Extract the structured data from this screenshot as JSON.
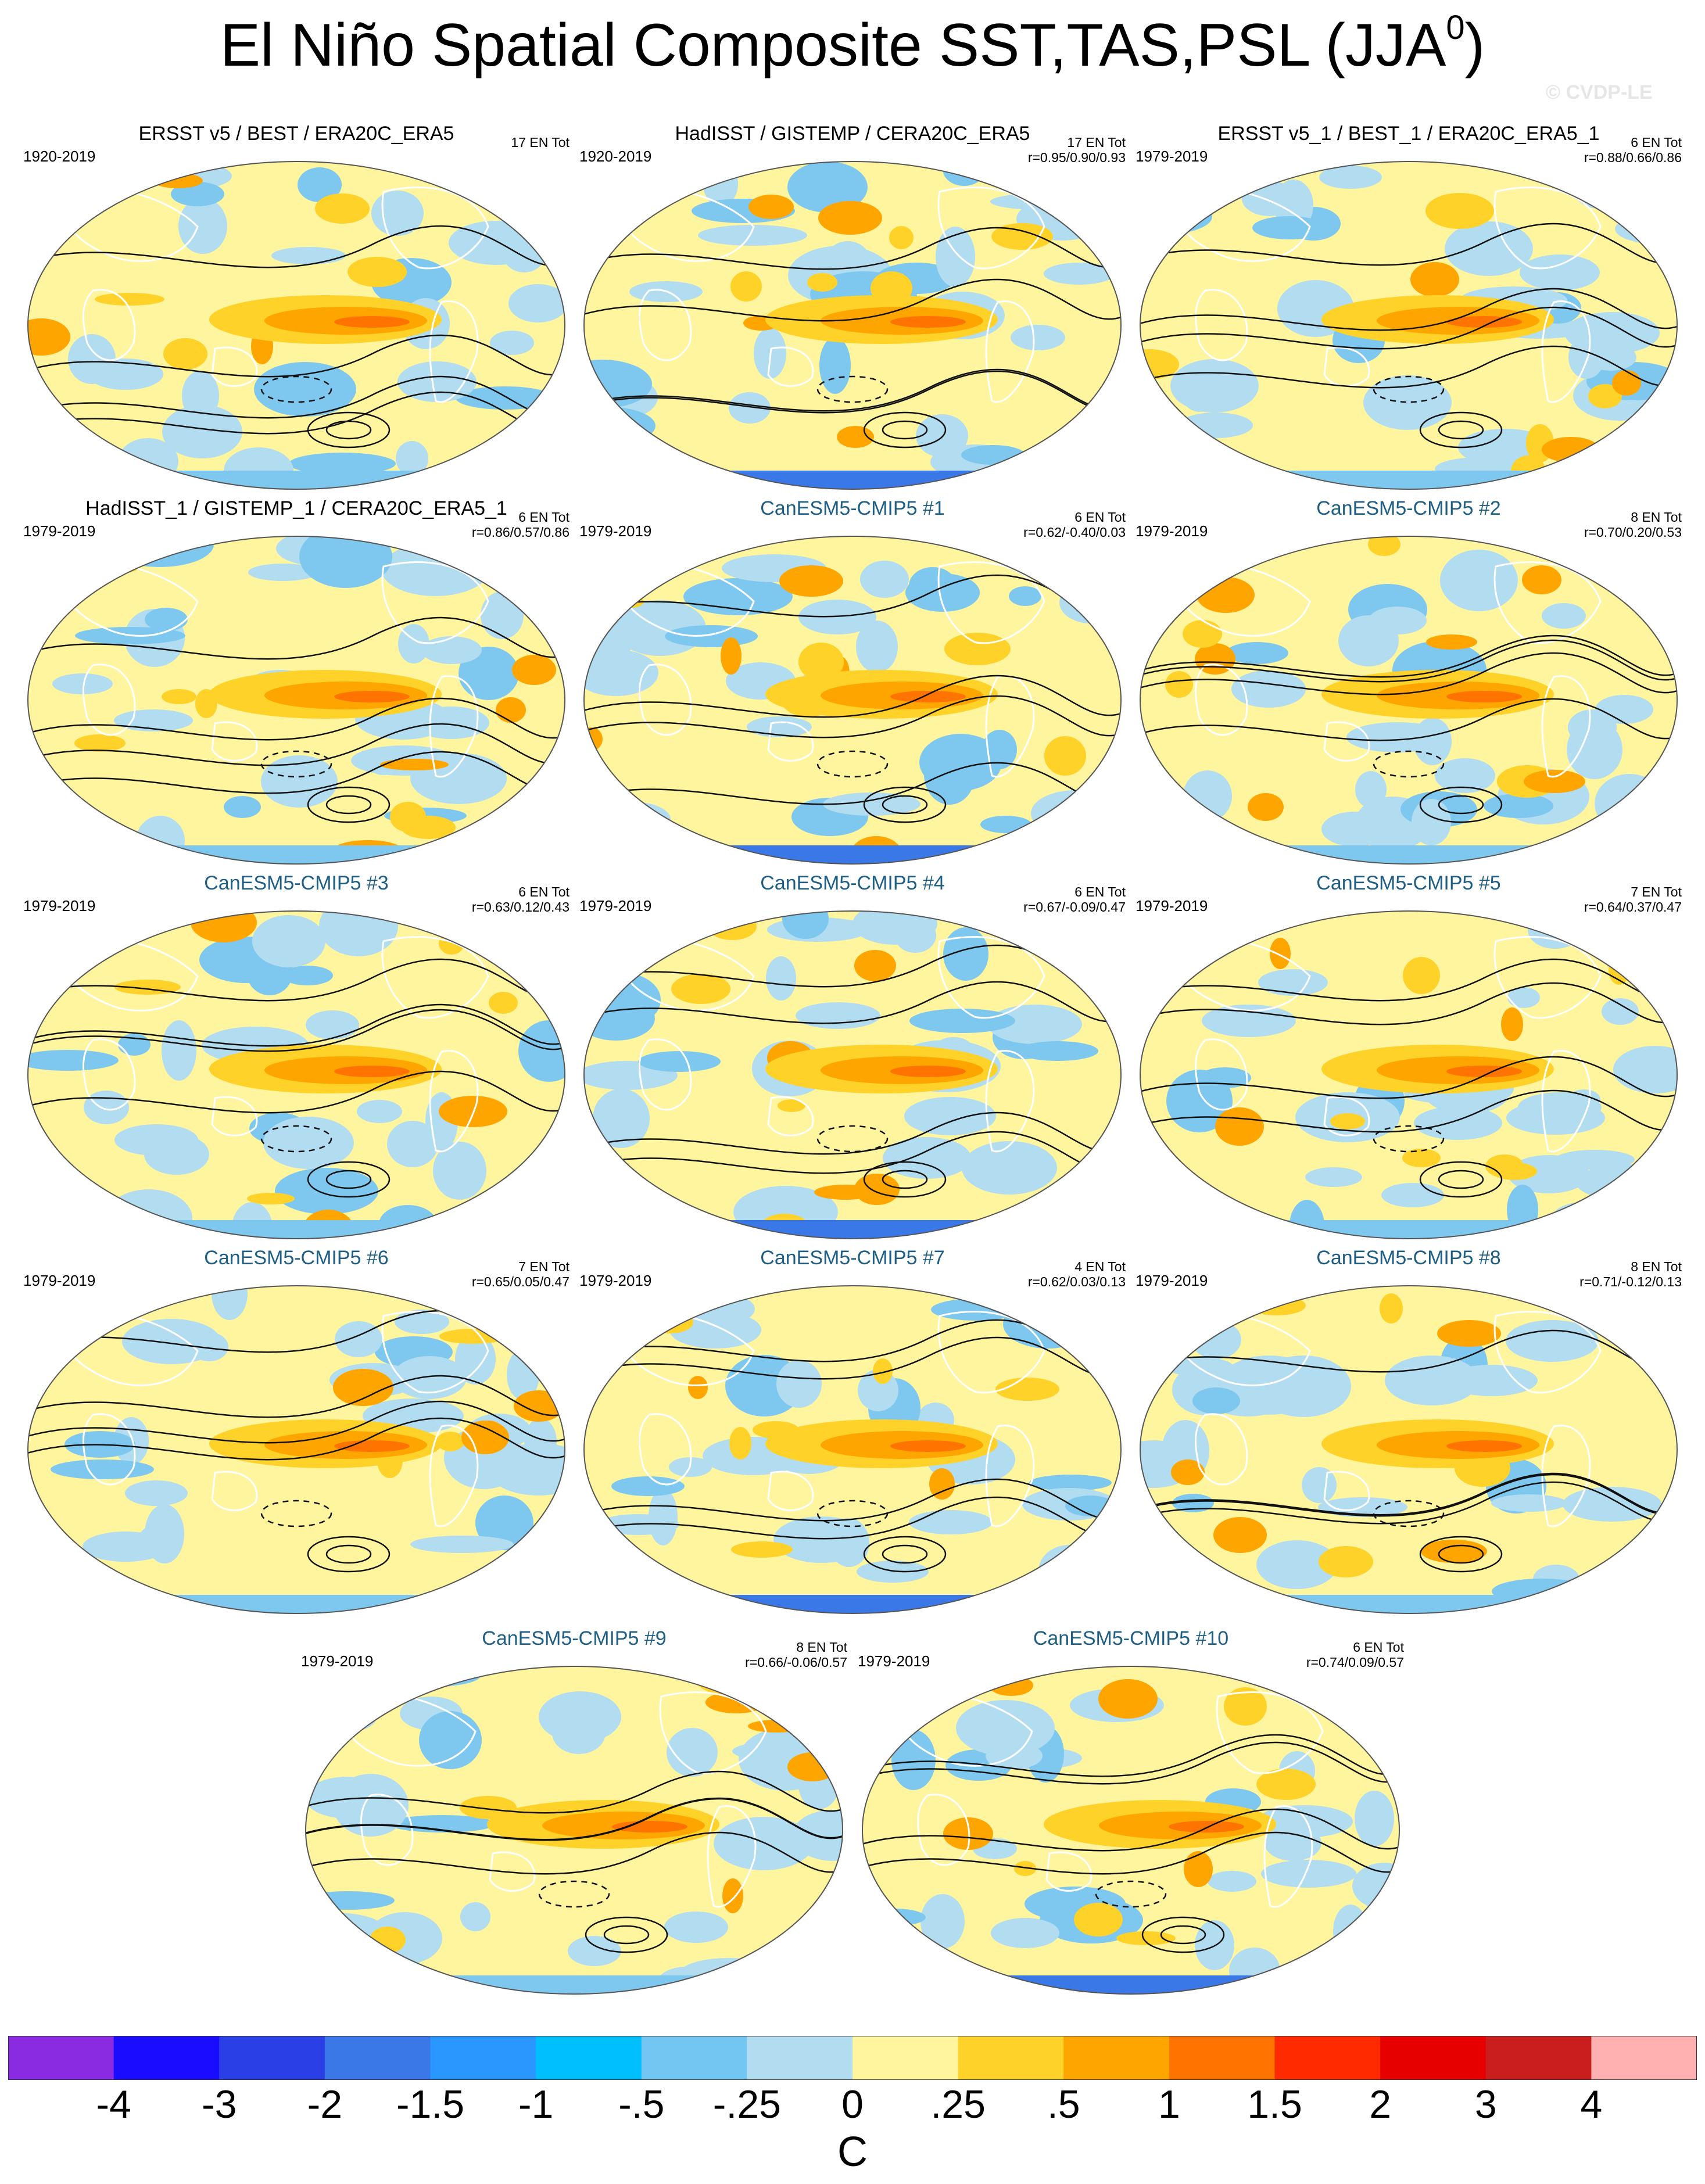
{
  "title": {
    "main": "El Niño Spatial Composite SST,TAS,PSL (JJA",
    "superscript": "0",
    "close": ")"
  },
  "watermark": "© CVDP-LE",
  "panels": [
    {
      "title": "ERSST v5 / BEST / ERA20C_ERA5",
      "kind": "obs",
      "period": "1920-2019",
      "events": "17 EN Tot",
      "r": ""
    },
    {
      "title": "HadISST / GISTEMP / CERA20C_ERA5",
      "kind": "obs",
      "period": "1920-2019",
      "events": "17 EN Tot",
      "r": "r=0.95/0.90/0.93"
    },
    {
      "title": "ERSST v5_1 / BEST_1 / ERA20C_ERA5_1",
      "kind": "obs",
      "period": "1979-2019",
      "events": "6 EN Tot",
      "r": "r=0.88/0.66/0.86"
    },
    {
      "title": "HadISST_1 / GISTEMP_1 / CERA20C_ERA5_1",
      "kind": "obs",
      "period": "1979-2019",
      "events": "6 EN Tot",
      "r": "r=0.86/0.57/0.86"
    },
    {
      "title": "CanESM5-CMIP5 #1",
      "kind": "model",
      "period": "1979-2019",
      "events": "6 EN Tot",
      "r": "r=0.62/-0.40/0.03"
    },
    {
      "title": "CanESM5-CMIP5 #2",
      "kind": "model",
      "period": "1979-2019",
      "events": "8 EN Tot",
      "r": "r=0.70/0.20/0.53"
    },
    {
      "title": "CanESM5-CMIP5 #3",
      "kind": "model",
      "period": "1979-2019",
      "events": "6 EN Tot",
      "r": "r=0.63/0.12/0.43"
    },
    {
      "title": "CanESM5-CMIP5 #4",
      "kind": "model",
      "period": "1979-2019",
      "events": "6 EN Tot",
      "r": "r=0.67/-0.09/0.47"
    },
    {
      "title": "CanESM5-CMIP5 #5",
      "kind": "model",
      "period": "1979-2019",
      "events": "7 EN Tot",
      "r": "r=0.64/0.37/0.47"
    },
    {
      "title": "CanESM5-CMIP5 #6",
      "kind": "model",
      "period": "1979-2019",
      "events": "7 EN Tot",
      "r": "r=0.65/0.05/0.47"
    },
    {
      "title": "CanESM5-CMIP5 #7",
      "kind": "model",
      "period": "1979-2019",
      "events": "4 EN Tot",
      "r": "r=0.62/0.03/0.13"
    },
    {
      "title": "CanESM5-CMIP5 #8",
      "kind": "model",
      "period": "1979-2019",
      "events": "8 EN Tot",
      "r": "r=0.71/-0.12/0.13"
    },
    {
      "title": "CanESM5-CMIP5 #9",
      "kind": "model",
      "period": "1979-2019",
      "events": "8 EN Tot",
      "r": "r=0.66/-0.06/0.57"
    },
    {
      "title": "CanESM5-CMIP5 #10",
      "kind": "model",
      "period": "1979-2019",
      "events": "6 EN Tot",
      "r": "r=0.74/0.09/0.57"
    }
  ],
  "colorbar": {
    "unit": "C",
    "colors": [
      "#8a2be2",
      "#1a0dff",
      "#2b3fe6",
      "#3a78e8",
      "#2a96ff",
      "#00bfff",
      "#73c6f2",
      "#b2dcf0",
      "#fff59e",
      "#ffd22a",
      "#ffa500",
      "#ff7300",
      "#ff2a00",
      "#e60000",
      "#c81e1e",
      "#ffb0b0"
    ],
    "labels": [
      "-4",
      "-3",
      "-2",
      "-1.5",
      "-1",
      "-.5",
      "-.25",
      "0",
      ".25",
      ".5",
      "1",
      "1.5",
      "2",
      "3",
      "4"
    ]
  }
}
